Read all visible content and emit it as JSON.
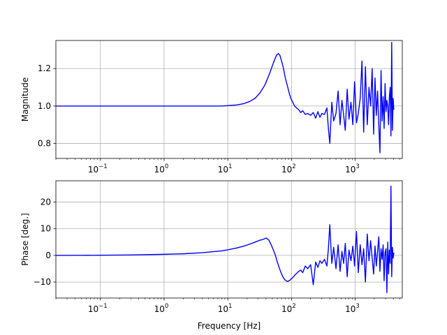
{
  "chart_data": [
    {
      "type": "line",
      "title": "",
      "xlabel": "",
      "ylabel": "Magnitude",
      "xscale": "log",
      "xlim": [
        0.02,
        5500
      ],
      "ylim": [
        0.72,
        1.35
      ],
      "grid": true,
      "xticks": [
        0.1,
        1,
        10,
        100,
        1000
      ],
      "xtick_labels": [
        {
          "base": "10",
          "exp": "−1"
        },
        {
          "base": "10",
          "exp": "0"
        },
        {
          "base": "10",
          "exp": "1"
        },
        {
          "base": "10",
          "exp": "2"
        },
        {
          "base": "10",
          "exp": "3"
        }
      ],
      "yticks": [
        0.8,
        1.0,
        1.2
      ],
      "ytick_labels": [
        "0.8",
        "1.0",
        "1.2"
      ],
      "series": [
        {
          "color": "#0000ff",
          "x": [
            0.02,
            0.05,
            0.1,
            0.3,
            1,
            3,
            8,
            10,
            14,
            18,
            22,
            27,
            32,
            38,
            45,
            52,
            58,
            62,
            66,
            70,
            75,
            80,
            86,
            92,
            98,
            105,
            112,
            120,
            130,
            140,
            150,
            165,
            180,
            200,
            220,
            240,
            260,
            280,
            300,
            330,
            360,
            380,
            400,
            430,
            460,
            500,
            540,
            580,
            620,
            660,
            700,
            750,
            800,
            860,
            920,
            980,
            1050,
            1120,
            1200,
            1280,
            1360,
            1450,
            1550,
            1650,
            1750,
            1850,
            1950,
            2050,
            2150,
            2250,
            2350,
            2450,
            2550,
            2650,
            2750,
            2850,
            2950,
            3050,
            3150,
            3250,
            3350,
            3450,
            3550,
            3650,
            3750,
            3850,
            3950,
            4050
          ],
          "y": [
            1.0,
            1.0,
            1.0,
            1.0,
            1.0,
            1.0,
            1.0,
            1.002,
            1.006,
            1.013,
            1.024,
            1.042,
            1.07,
            1.11,
            1.17,
            1.23,
            1.27,
            1.28,
            1.27,
            1.24,
            1.2,
            1.15,
            1.11,
            1.07,
            1.04,
            1.02,
            1.0,
            0.99,
            0.98,
            0.965,
            0.975,
            0.955,
            0.96,
            0.95,
            0.965,
            0.935,
            0.97,
            0.94,
            0.96,
            0.955,
            0.99,
            0.88,
            0.8,
            1.02,
            0.92,
            0.96,
            1.08,
            0.9,
            1.03,
            0.95,
            0.87,
            1.09,
            0.93,
            1.02,
            0.9,
            1.13,
            0.91,
            0.96,
            1.04,
            1.24,
            0.86,
            1.21,
            0.9,
            1.1,
            1.0,
            1.2,
            0.85,
            1.15,
            0.95,
            1.08,
            0.9,
            0.75,
            1.19,
            0.92,
            1.05,
            0.88,
            1.12,
            0.97,
            1.03,
            1.0,
            0.9,
            1.05,
            1.1,
            0.84,
            1.34,
            0.87,
            1.04,
            0.98
          ]
        }
      ]
    },
    {
      "type": "line",
      "title": "",
      "xlabel": "Frequency [Hz]",
      "ylabel": "Phase [deg.]",
      "xscale": "log",
      "xlim": [
        0.02,
        5500
      ],
      "ylim": [
        -16,
        28
      ],
      "grid": true,
      "xticks": [
        0.1,
        1,
        10,
        100,
        1000
      ],
      "xtick_labels": [
        {
          "base": "10",
          "exp": "−1"
        },
        {
          "base": "10",
          "exp": "0"
        },
        {
          "base": "10",
          "exp": "1"
        },
        {
          "base": "10",
          "exp": "2"
        },
        {
          "base": "10",
          "exp": "3"
        }
      ],
      "yticks": [
        -10,
        0,
        10,
        20
      ],
      "ytick_labels": [
        "−10",
        "0",
        "10",
        "20"
      ],
      "series": [
        {
          "color": "#0000ff",
          "x": [
            0.02,
            0.05,
            0.1,
            0.3,
            1,
            2,
            4,
            8,
            10,
            14,
            18,
            22,
            27,
            32,
            36,
            40,
            44,
            48,
            52,
            56,
            60,
            65,
            70,
            75,
            80,
            86,
            92,
            98,
            105,
            112,
            120,
            130,
            140,
            150,
            165,
            180,
            200,
            220,
            240,
            260,
            280,
            300,
            330,
            360,
            380,
            400,
            430,
            460,
            500,
            540,
            580,
            620,
            660,
            700,
            750,
            800,
            860,
            920,
            980,
            1050,
            1120,
            1200,
            1280,
            1360,
            1450,
            1550,
            1650,
            1750,
            1850,
            1950,
            2050,
            2150,
            2250,
            2350,
            2450,
            2550,
            2650,
            2750,
            2850,
            2950,
            3050,
            3150,
            3250,
            3350,
            3450,
            3550,
            3650,
            3750,
            3850,
            3950,
            4050
          ],
          "y": [
            0.0,
            0.03,
            0.05,
            0.15,
            0.4,
            0.6,
            1.0,
            1.7,
            2.1,
            2.8,
            3.5,
            4.2,
            5.0,
            5.7,
            6.0,
            6.5,
            5.8,
            4.0,
            2.0,
            0.0,
            -2.5,
            -5.0,
            -7.0,
            -8.5,
            -9.3,
            -9.8,
            -9.5,
            -9.0,
            -8.3,
            -7.5,
            -6.8,
            -6.0,
            -5.5,
            -6.5,
            -4.0,
            -5.0,
            -3.5,
            -11.0,
            -2.5,
            -4.5,
            -2.0,
            -3.0,
            -1.5,
            -4.0,
            2.5,
            11.5,
            -3.0,
            3.0,
            -5.0,
            4.0,
            -6.0,
            1.5,
            -3.0,
            4.5,
            -8.0,
            2.0,
            -2.0,
            3.5,
            -4.0,
            9.0,
            -6.5,
            4.0,
            -3.5,
            2.5,
            -10.0,
            8.0,
            -2.0,
            5.5,
            -1.0,
            -7.0,
            3.5,
            -4.0,
            1.5,
            7.0,
            -6.0,
            2.5,
            -1.5,
            4.0,
            -9.5,
            1.0,
            2.5,
            -14.0,
            5.0,
            -7.0,
            2.0,
            -3.0,
            26.0,
            -8.0,
            3.0,
            -1.0,
            1.0
          ]
        }
      ]
    }
  ]
}
